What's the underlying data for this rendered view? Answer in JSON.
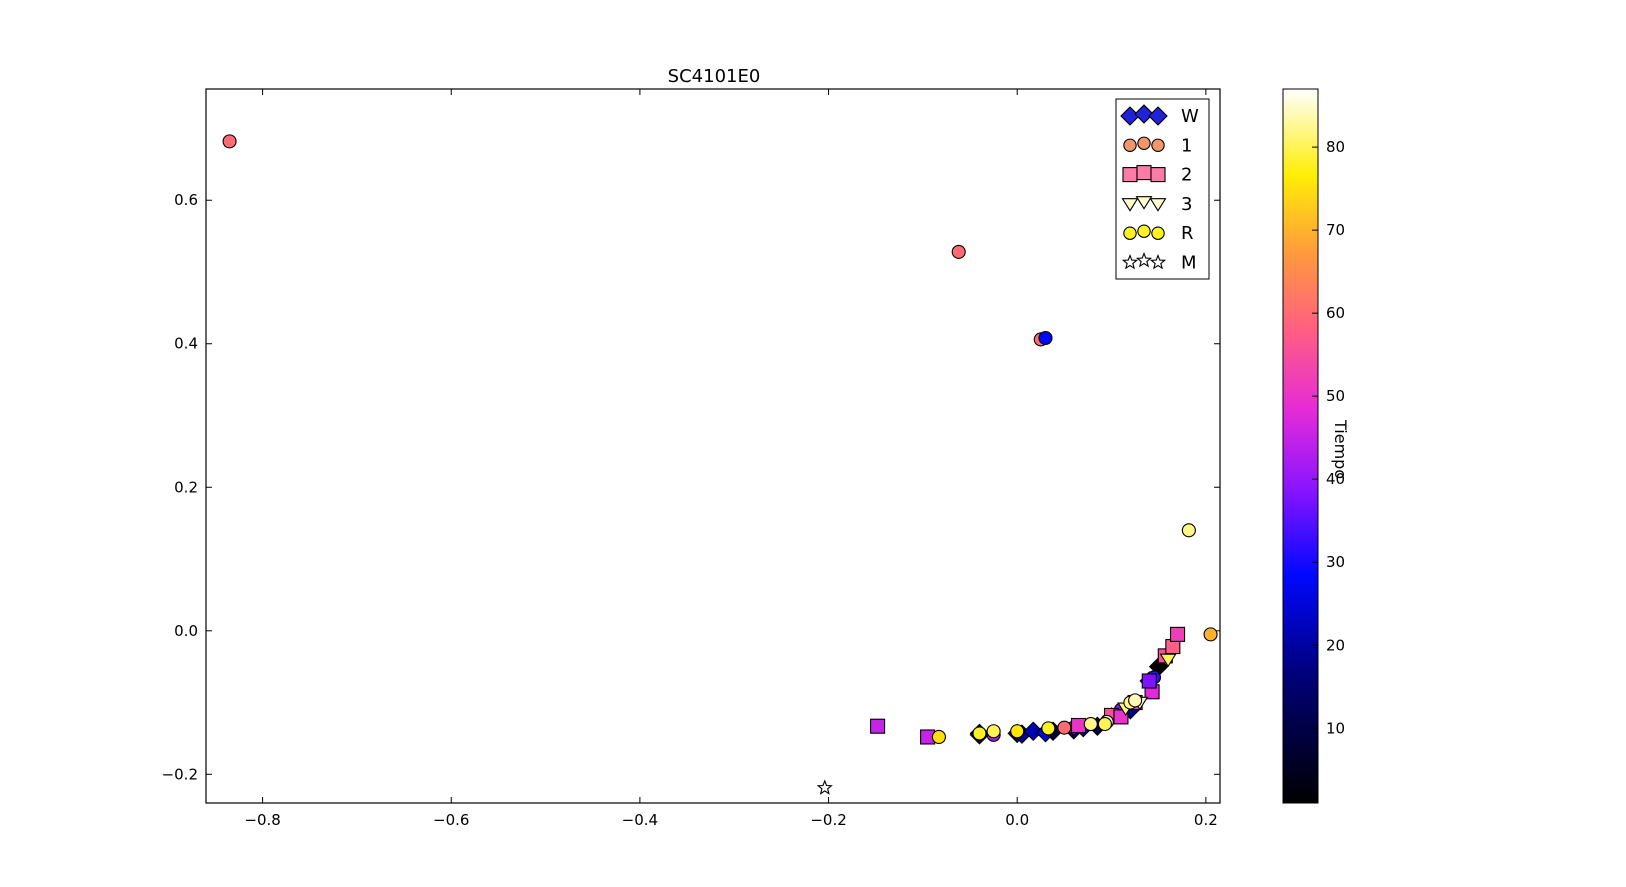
{
  "chart_data": {
    "type": "scatter",
    "title": "SC4101E0",
    "xlabel": "",
    "ylabel": "",
    "xlim": [
      -0.86,
      0.215
    ],
    "ylim": [
      -0.24,
      0.755
    ],
    "xticks": [
      -0.8,
      -0.6,
      -0.4,
      -0.2,
      0.0,
      0.2
    ],
    "xtick_labels": [
      "−0.8",
      "−0.6",
      "−0.4",
      "−0.2",
      "0.0",
      "0.2"
    ],
    "yticks": [
      -0.2,
      0.0,
      0.2,
      0.4,
      0.6
    ],
    "ytick_labels": [
      "−0.2",
      "0.0",
      "0.2",
      "0.4",
      "0.6"
    ],
    "grid": false,
    "legend_position": "top-right",
    "colorbar": {
      "label": "Tiempo",
      "range": [
        1,
        87
      ],
      "ticks": [
        10,
        20,
        30,
        40,
        50,
        60,
        70,
        80
      ],
      "tick_labels": [
        "10",
        "20",
        "30",
        "40",
        "50",
        "60",
        "70",
        "80"
      ],
      "colormap": "gnuplot2"
    },
    "series": [
      {
        "name": "W",
        "marker": "diamond",
        "points": [
          [
            -0.04,
            -0.145,
            5
          ],
          [
            -0.04,
            -0.143,
            6
          ],
          [
            0.0,
            -0.143,
            15
          ],
          [
            0.005,
            -0.144,
            18
          ],
          [
            0.017,
            -0.14,
            22
          ],
          [
            0.03,
            -0.142,
            25
          ],
          [
            0.038,
            -0.14,
            8
          ],
          [
            0.06,
            -0.138,
            12
          ],
          [
            0.07,
            -0.135,
            20
          ],
          [
            0.085,
            -0.133,
            10
          ],
          [
            0.1,
            -0.12,
            15
          ],
          [
            0.12,
            -0.11,
            18
          ],
          [
            0.14,
            -0.07,
            3
          ],
          [
            0.15,
            -0.05,
            1
          ]
        ]
      },
      {
        "name": "1",
        "marker": "circle",
        "points": [
          [
            -0.835,
            0.682,
            60
          ],
          [
            -0.062,
            0.528,
            60
          ],
          [
            0.025,
            0.406,
            60
          ],
          [
            0.03,
            0.408,
            28
          ],
          [
            -0.025,
            -0.145,
            42
          ],
          [
            0.06,
            -0.135,
            40
          ],
          [
            0.11,
            -0.11,
            38
          ],
          [
            0.145,
            -0.065,
            32
          ],
          [
            0.205,
            -0.005,
            70
          ],
          [
            0.05,
            -0.135,
            60
          ]
        ]
      },
      {
        "name": "2",
        "marker": "square",
        "points": [
          [
            -0.148,
            -0.133,
            45
          ],
          [
            -0.095,
            -0.148,
            45
          ],
          [
            0.065,
            -0.132,
            50
          ],
          [
            0.1,
            -0.118,
            55
          ],
          [
            0.11,
            -0.12,
            50
          ],
          [
            0.125,
            -0.1,
            52
          ],
          [
            0.143,
            -0.085,
            48
          ],
          [
            0.14,
            -0.07,
            38
          ],
          [
            0.157,
            -0.035,
            55
          ],
          [
            0.165,
            -0.022,
            58
          ],
          [
            0.17,
            -0.005,
            52
          ]
        ]
      },
      {
        "name": "3",
        "marker": "triangle",
        "points": [
          [
            0.115,
            -0.108,
            82
          ],
          [
            0.13,
            -0.1,
            85
          ],
          [
            0.16,
            -0.04,
            80
          ]
        ]
      },
      {
        "name": "R",
        "marker": "circle",
        "points": [
          [
            0.182,
            0.14,
            82
          ],
          [
            -0.083,
            -0.148,
            75
          ],
          [
            -0.04,
            -0.143,
            78
          ],
          [
            -0.025,
            -0.14,
            80
          ],
          [
            0.0,
            -0.14,
            76
          ],
          [
            0.033,
            -0.136,
            78
          ],
          [
            0.078,
            -0.13,
            82
          ],
          [
            0.095,
            -0.127,
            84
          ],
          [
            0.093,
            -0.13,
            80
          ],
          [
            0.12,
            -0.1,
            82
          ],
          [
            0.125,
            -0.097,
            84
          ]
        ]
      },
      {
        "name": "M",
        "marker": "star",
        "points": [
          [
            -0.204,
            -0.219,
            87
          ]
        ]
      }
    ]
  }
}
